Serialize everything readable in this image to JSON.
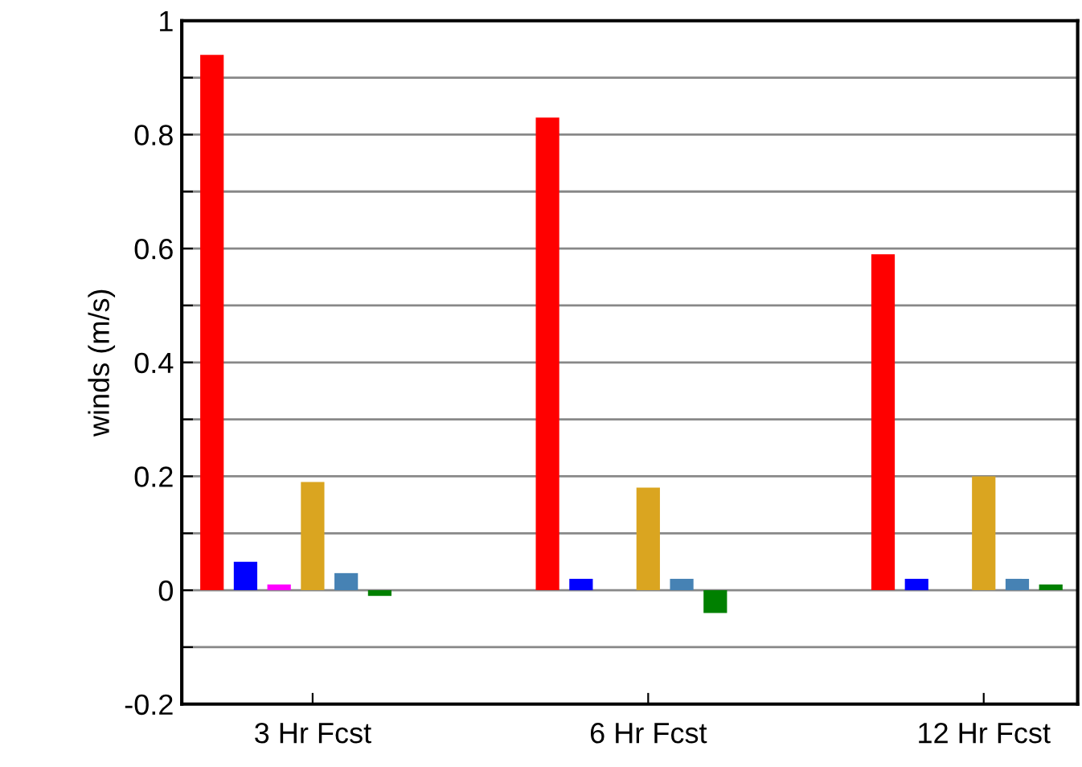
{
  "chart_data": {
    "type": "bar",
    "ylabel": "winds (m/s)",
    "categories": [
      "3 Hr Fcst",
      "6 Hr Fcst",
      "12 Hr Fcst"
    ],
    "series": [
      {
        "color": "#ff0000",
        "values": [
          0.94,
          0.83,
          0.59
        ]
      },
      {
        "color": "#0000ff",
        "values": [
          0.05,
          0.02,
          0.02
        ]
      },
      {
        "color": "#ff00ff",
        "values": [
          0.01,
          null,
          null
        ]
      },
      {
        "color": "#daa520",
        "values": [
          0.19,
          0.18,
          0.2
        ]
      },
      {
        "color": "#4682b4",
        "values": [
          0.03,
          0.02,
          0.02
        ]
      },
      {
        "color": "#008000",
        "values": [
          -0.01,
          -0.04,
          0.01
        ]
      }
    ],
    "ylim": [
      -0.2,
      1
    ],
    "yticks": [
      -0.2,
      {
        "value": -0.1,
        "label": null
      },
      0,
      {
        "value": 0.1,
        "label": null
      },
      0.2,
      {
        "value": 0.3,
        "label": null
      },
      0.4,
      {
        "value": 0.5,
        "label": null
      },
      0.6,
      {
        "value": 0.7,
        "label": null
      },
      0.8,
      {
        "value": 0.9,
        "label": null
      },
      1
    ],
    "grid": "y",
    "legend": false
  }
}
